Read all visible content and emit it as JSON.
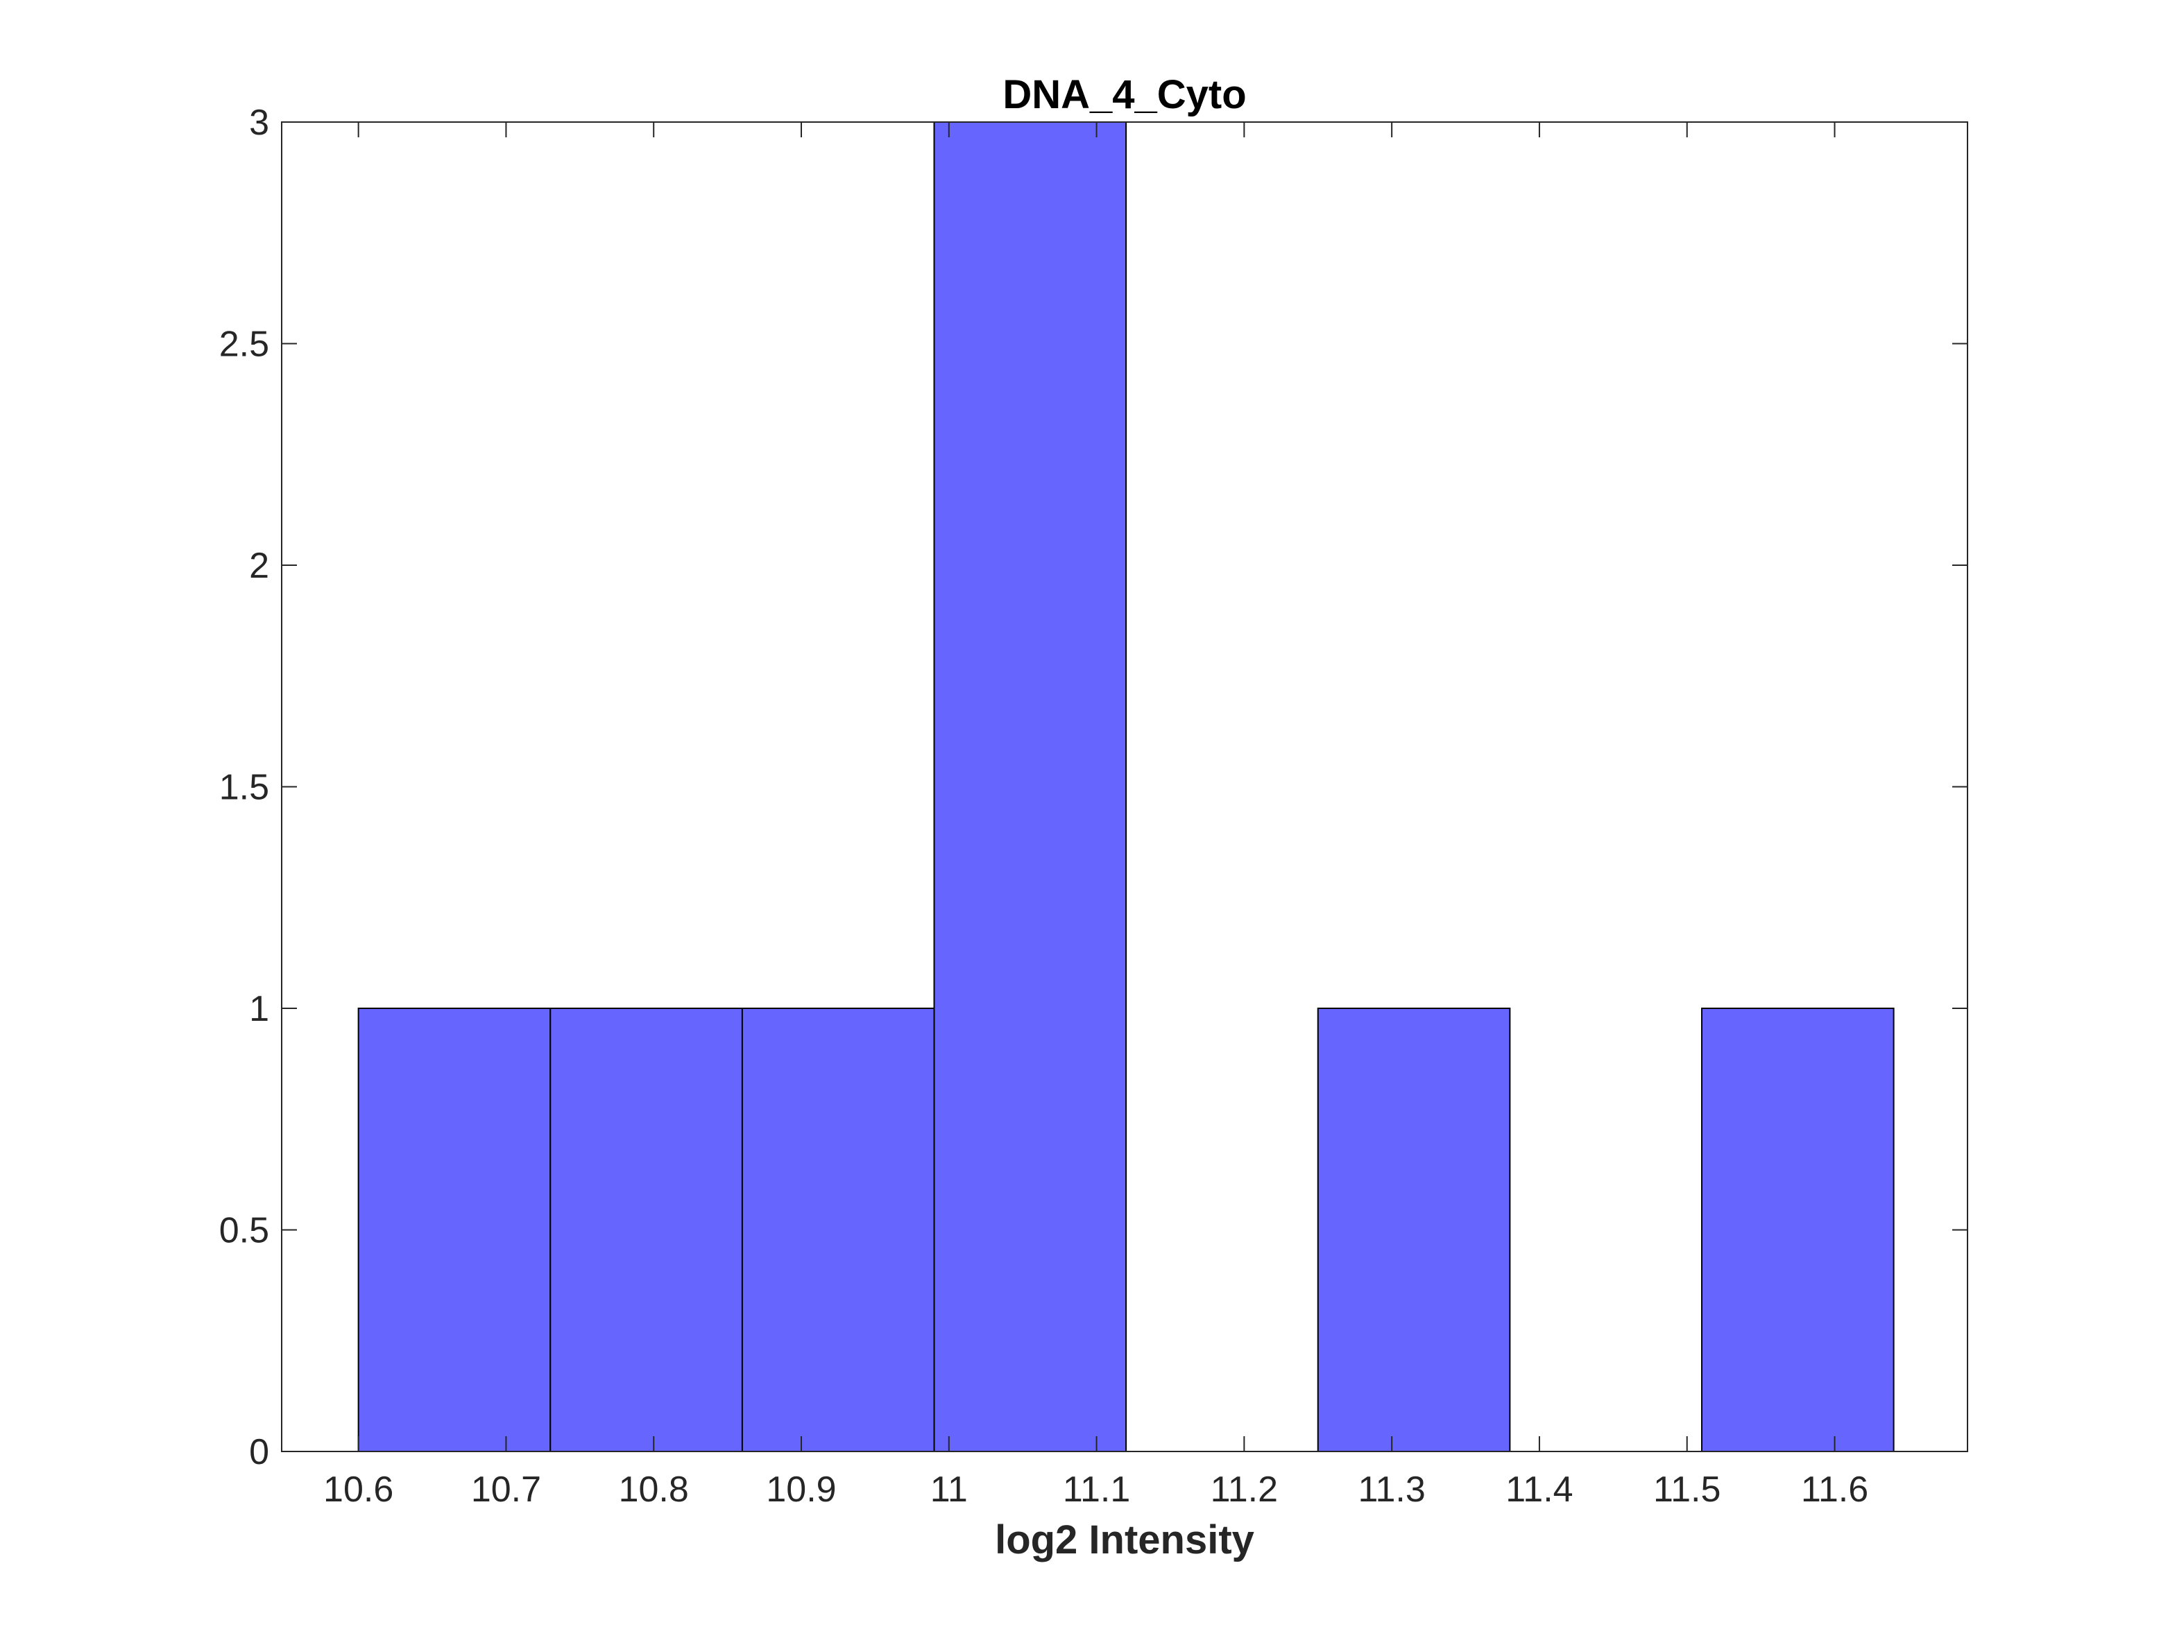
{
  "chart_data": {
    "type": "bar",
    "title": "DNA_4_Cyto",
    "xlabel": "log2 Intensity",
    "ylabel": "",
    "bar_color": "#6666FF",
    "edge_color": "#000000",
    "axis_color": "#262626",
    "bins": [
      {
        "x0": 10.6,
        "x1": 10.73,
        "count": 1
      },
      {
        "x0": 10.73,
        "x1": 10.86,
        "count": 1
      },
      {
        "x0": 10.86,
        "x1": 10.99,
        "count": 1
      },
      {
        "x0": 10.99,
        "x1": 11.12,
        "count": 3
      },
      {
        "x0": 11.12,
        "x1": 11.25,
        "count": 0
      },
      {
        "x0": 11.25,
        "x1": 11.38,
        "count": 1
      },
      {
        "x0": 11.38,
        "x1": 11.51,
        "count": 0
      },
      {
        "x0": 11.51,
        "x1": 11.64,
        "count": 1
      }
    ],
    "xlim": [
      10.548,
      11.69
    ],
    "ylim": [
      0,
      3
    ],
    "x_ticks": [
      10.6,
      10.7,
      10.8,
      10.9,
      11,
      11.1,
      11.2,
      11.3,
      11.4,
      11.5,
      11.6
    ],
    "x_tick_labels": [
      "10.6",
      "10.7",
      "10.8",
      "10.9",
      "11",
      "11.1",
      "11.2",
      "11.3",
      "11.4",
      "11.5",
      "11.6"
    ],
    "y_ticks": [
      0,
      0.5,
      1,
      1.5,
      2,
      2.5,
      3
    ],
    "y_tick_labels": [
      "0",
      "0.5",
      "1",
      "1.5",
      "2",
      "2.5",
      "3"
    ],
    "grid": false,
    "legend": "none"
  }
}
